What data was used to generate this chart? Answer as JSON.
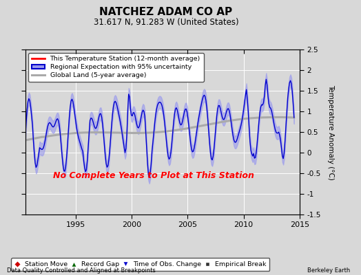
{
  "title": "NATCHEZ ADAM CO AP",
  "subtitle": "31.617 N, 91.283 W (United States)",
  "ylabel": "Temperature Anomaly (°C)",
  "xlabel_note": "Data Quality Controlled and Aligned at Breakpoints",
  "credit": "Berkeley Earth",
  "annotation": "No Complete Years to Plot at This Station",
  "annotation_color": "#ff0000",
  "xlim": [
    1990.5,
    2014.5
  ],
  "ylim": [
    -1.5,
    2.5
  ],
  "yticks": [
    -1.5,
    -1.0,
    -0.5,
    0.0,
    0.5,
    1.0,
    1.5,
    2.0,
    2.5
  ],
  "xticks": [
    1995,
    2000,
    2005,
    2010,
    2015
  ],
  "bg_color": "#d8d8d8",
  "plot_bg_color": "#d8d8d8",
  "grid_color": "#ffffff",
  "regional_color": "#0000cc",
  "regional_fill_color": "#9999ee",
  "global_color": "#aaaaaa",
  "station_color": "#ff0000",
  "legend1_items": [
    {
      "label": "This Temperature Station (12-month average)",
      "color": "#ff0000",
      "lw": 2
    },
    {
      "label": "Regional Expectation with 95% uncertainty",
      "color": "#0000cc",
      "lw": 2
    },
    {
      "label": "Global Land (5-year average)",
      "color": "#aaaaaa",
      "lw": 2
    }
  ],
  "legend2_items": [
    {
      "label": "Station Move",
      "marker": "D",
      "color": "#cc0000"
    },
    {
      "label": "Record Gap",
      "marker": "^",
      "color": "#006600"
    },
    {
      "label": "Time of Obs. Change",
      "marker": "v",
      "color": "#0000cc"
    },
    {
      "label": "Empirical Break",
      "marker": "s",
      "color": "#333333"
    }
  ]
}
